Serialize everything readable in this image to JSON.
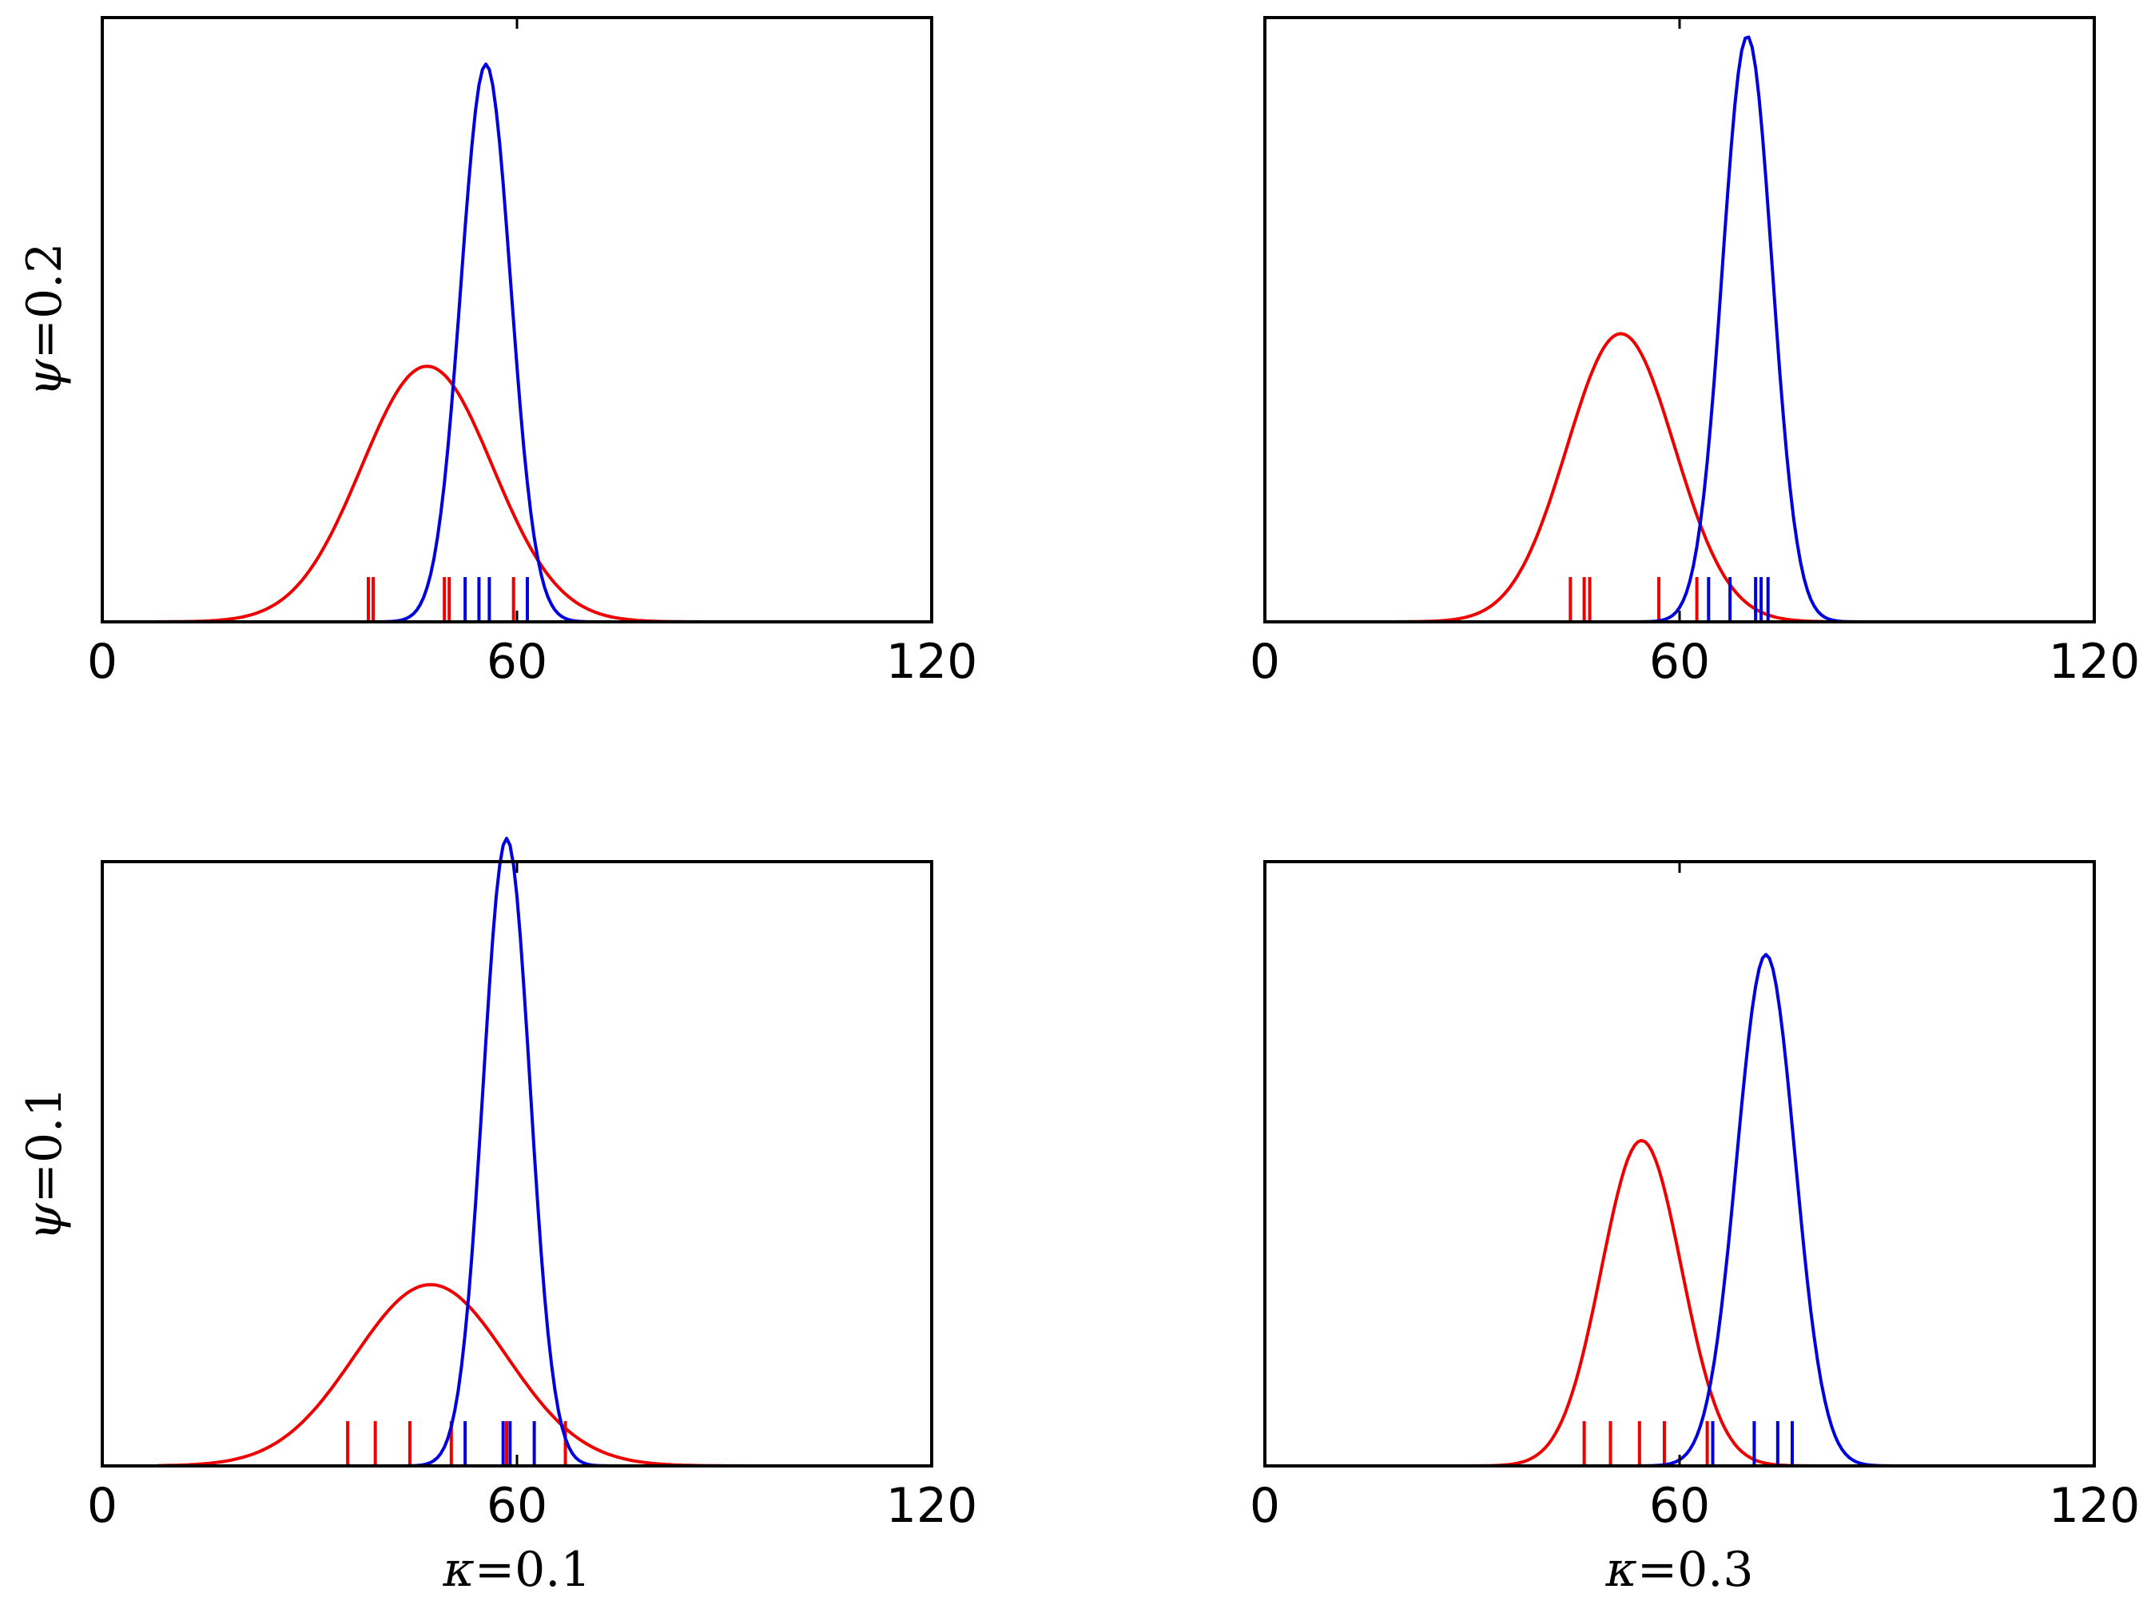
{
  "colors": {
    "red": "#ee0000",
    "blue": "#0000dd",
    "axes": "#000000"
  },
  "chart_data": [
    {
      "type": "line",
      "panel": "top-left",
      "row_label": {
        "sym": "ψ",
        "text": "=0.2"
      },
      "col_label": null,
      "xlim": [
        0,
        120
      ],
      "xticks": [
        "0",
        "60",
        "120"
      ],
      "ylim": [
        0,
        1.3
      ],
      "grid": false,
      "series": [
        {
          "color": "red",
          "curve": {
            "mean": 47,
            "sd": 9.5,
            "peak": 0.55
          },
          "rug": [
            38.5,
            39.2,
            49.5,
            50.2,
            59.5
          ]
        },
        {
          "color": "blue",
          "curve": {
            "mean": 55.5,
            "sd": 3.6,
            "peak": 1.2
          },
          "rug": [
            52.5,
            54.5,
            56,
            61.5
          ]
        }
      ]
    },
    {
      "type": "line",
      "panel": "top-right",
      "row_label": null,
      "col_label": null,
      "xlim": [
        0,
        120
      ],
      "xticks": [
        "0",
        "60",
        "120"
      ],
      "ylim": [
        0,
        1.3
      ],
      "grid": false,
      "series": [
        {
          "color": "red",
          "curve": {
            "mean": 51.5,
            "sd": 7.8,
            "peak": 0.62
          },
          "rug": [
            44.2,
            46.2,
            47,
            57,
            62.5
          ]
        },
        {
          "color": "blue",
          "curve": {
            "mean": 69.8,
            "sd": 3.6,
            "peak": 1.26
          },
          "rug": [
            64.2,
            67.3,
            71,
            71.8,
            72.8
          ]
        }
      ]
    },
    {
      "type": "line",
      "panel": "bottom-left",
      "row_label": {
        "sym": "ψ",
        "text": "=0.1"
      },
      "col_label": {
        "sym": "κ",
        "text": "=0.1"
      },
      "xlim": [
        0,
        120
      ],
      "xticks": [
        "0",
        "60",
        "120"
      ],
      "ylim": [
        0,
        1.3
      ],
      "grid": false,
      "series": [
        {
          "color": "red",
          "curve": {
            "mean": 47.5,
            "sd": 11,
            "peak": 0.39
          },
          "rug": [
            35.5,
            39.5,
            44.5,
            50.5,
            58.5,
            67
          ]
        },
        {
          "color": "blue",
          "curve": {
            "mean": 58.5,
            "sd": 3.4,
            "peak": 1.35
          },
          "rug": [
            52.5,
            58,
            59,
            62.5
          ]
        }
      ]
    },
    {
      "type": "line",
      "panel": "bottom-right",
      "row_label": null,
      "col_label": {
        "sym": "κ",
        "text": "=0.3"
      },
      "xlim": [
        0,
        120
      ],
      "xticks": [
        "0",
        "60",
        "120"
      ],
      "ylim": [
        0,
        1.3
      ],
      "grid": false,
      "series": [
        {
          "color": "red",
          "curve": {
            "mean": 54.5,
            "sd": 5.8,
            "peak": 0.7
          },
          "rug": [
            46.2,
            50,
            54.2,
            57.8,
            64
          ]
        },
        {
          "color": "blue",
          "curve": {
            "mean": 72.5,
            "sd": 4.2,
            "peak": 1.1
          },
          "rug": [
            64.8,
            70.8,
            74.2,
            76.3
          ]
        }
      ]
    }
  ]
}
